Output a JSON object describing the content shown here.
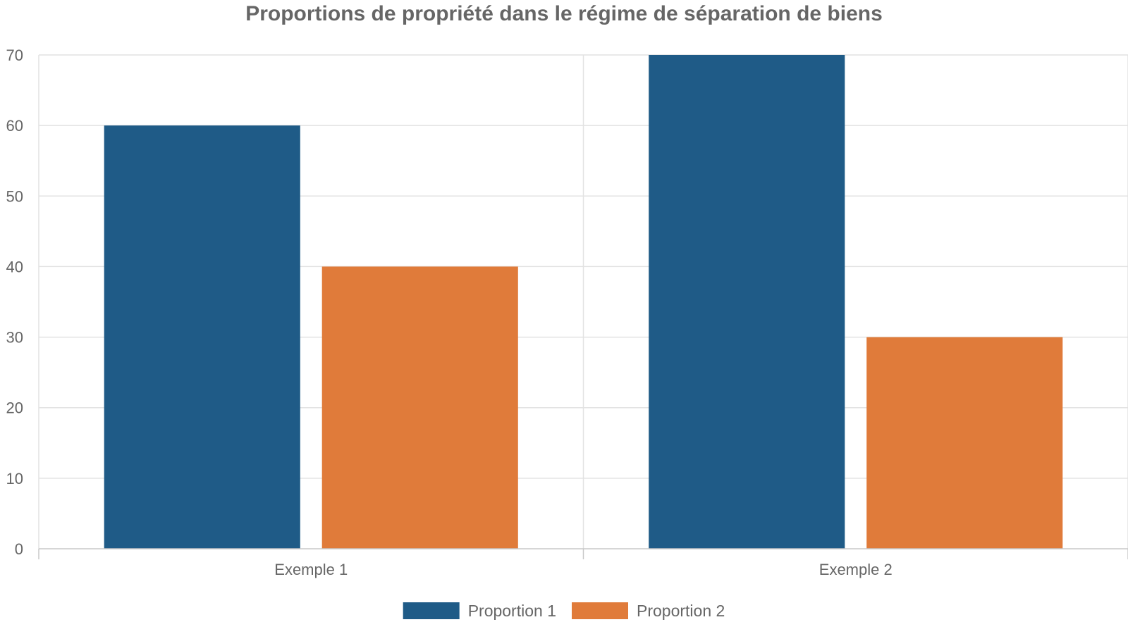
{
  "chart_data": {
    "type": "bar",
    "title": "Proportions de propriété dans le régime de séparation de biens",
    "xlabel": "",
    "ylabel": "",
    "categories": [
      "Exemple 1",
      "Exemple 2"
    ],
    "series": [
      {
        "name": "Proportion 1",
        "values": [
          60,
          70
        ],
        "color": "#1f5b87"
      },
      {
        "name": "Proportion 2",
        "values": [
          40,
          30
        ],
        "color": "#e07b3a"
      }
    ],
    "ylim": [
      0,
      70
    ],
    "yticks": [
      0,
      10,
      20,
      30,
      40,
      50,
      60,
      70
    ],
    "grid": true,
    "legend_position": "bottom-center"
  }
}
